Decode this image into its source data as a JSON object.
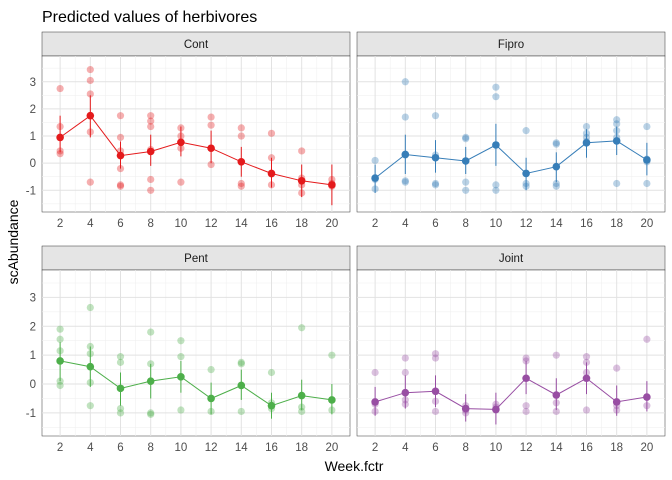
{
  "chart_data": {
    "type": "scatter",
    "title": "Predicted values of herbivores",
    "xlabel": "Week.fctr",
    "ylabel": "scAbundance",
    "categories": [
      "2",
      "4",
      "6",
      "8",
      "10",
      "12",
      "14",
      "16",
      "18",
      "20"
    ],
    "ylim": [
      -1.8,
      4.0
    ],
    "yticks": [
      -1,
      0,
      1,
      2,
      3
    ],
    "grid": true,
    "legend": "none",
    "series": [
      {
        "name": "Cont",
        "color": "#E41A1C",
        "predicted": [
          0.95,
          1.75,
          0.28,
          0.43,
          0.77,
          0.55,
          0.05,
          -0.38,
          -0.65,
          -0.8
        ],
        "ci_low": [
          0.4,
          0.95,
          -0.2,
          -0.1,
          0.25,
          0.0,
          -0.5,
          -0.9,
          -1.25,
          -1.55
        ],
        "ci_high": [
          1.75,
          2.5,
          0.8,
          1.05,
          1.35,
          1.2,
          0.6,
          0.2,
          -0.05,
          -0.05
        ],
        "raw_points": [
          [
            2,
            2.75
          ],
          [
            2,
            0.45
          ],
          [
            2,
            0.35
          ],
          [
            2,
            1.35
          ],
          [
            4,
            3.45
          ],
          [
            4,
            3.05
          ],
          [
            4,
            2.55
          ],
          [
            4,
            1.15
          ],
          [
            4,
            -0.7
          ],
          [
            6,
            1.75
          ],
          [
            6,
            0.95
          ],
          [
            6,
            0.45
          ],
          [
            6,
            -0.2
          ],
          [
            6,
            -0.8
          ],
          [
            6,
            -0.85
          ],
          [
            8,
            1.75
          ],
          [
            8,
            1.55
          ],
          [
            8,
            1.35
          ],
          [
            8,
            0.5
          ],
          [
            8,
            -0.6
          ],
          [
            8,
            -1.0
          ],
          [
            10,
            1.3
          ],
          [
            10,
            1.0
          ],
          [
            10,
            0.55
          ],
          [
            10,
            -0.7
          ],
          [
            12,
            1.7
          ],
          [
            12,
            1.4
          ],
          [
            12,
            0.55
          ],
          [
            12,
            -0.05
          ],
          [
            14,
            1.3
          ],
          [
            14,
            1.0
          ],
          [
            14,
            -0.75
          ],
          [
            14,
            -0.85
          ],
          [
            16,
            1.1
          ],
          [
            16,
            0.2
          ],
          [
            16,
            -0.4
          ],
          [
            16,
            -0.8
          ],
          [
            18,
            0.45
          ],
          [
            18,
            -0.55
          ],
          [
            18,
            -0.8
          ],
          [
            18,
            -1.1
          ],
          [
            20,
            -0.6
          ],
          [
            20,
            -0.75
          ],
          [
            20,
            -0.8
          ],
          [
            20,
            -0.85
          ]
        ]
      },
      {
        "name": "Fipro",
        "color": "#377EB8",
        "predicted": [
          -0.55,
          0.32,
          0.2,
          0.08,
          0.67,
          -0.38,
          -0.13,
          0.75,
          0.82,
          0.12
        ],
        "ci_low": [
          -1.1,
          -0.4,
          -0.35,
          -0.4,
          -0.1,
          -1.0,
          -0.7,
          0.2,
          0.3,
          -0.45
        ],
        "ci_high": [
          -0.05,
          1.05,
          0.85,
          0.6,
          1.45,
          0.2,
          0.4,
          1.25,
          1.35,
          0.75
        ],
        "raw_points": [
          [
            2,
            0.1
          ],
          [
            2,
            -0.6
          ],
          [
            2,
            -0.95
          ],
          [
            4,
            3.0
          ],
          [
            4,
            1.7
          ],
          [
            4,
            0.3
          ],
          [
            4,
            -0.65
          ],
          [
            4,
            -0.7
          ],
          [
            6,
            1.75
          ],
          [
            6,
            0.3
          ],
          [
            6,
            -0.75
          ],
          [
            6,
            -0.8
          ],
          [
            8,
            0.95
          ],
          [
            8,
            0.9
          ],
          [
            8,
            -0.7
          ],
          [
            8,
            -1.0
          ],
          [
            10,
            2.8
          ],
          [
            10,
            2.45
          ],
          [
            10,
            -0.8
          ],
          [
            10,
            -1.0
          ],
          [
            12,
            1.2
          ],
          [
            12,
            -0.75
          ],
          [
            12,
            -0.85
          ],
          [
            14,
            0.75
          ],
          [
            14,
            0.7
          ],
          [
            14,
            -0.75
          ],
          [
            14,
            -0.85
          ],
          [
            16,
            1.35
          ],
          [
            16,
            1.1
          ],
          [
            16,
            0.95
          ],
          [
            16,
            0.8
          ],
          [
            18,
            1.6
          ],
          [
            18,
            1.45
          ],
          [
            18,
            1.2
          ],
          [
            18,
            0.95
          ],
          [
            18,
            -0.75
          ],
          [
            20,
            1.35
          ],
          [
            20,
            0.15
          ],
          [
            20,
            0.05
          ],
          [
            20,
            -0.75
          ]
        ]
      },
      {
        "name": "Pent",
        "color": "#4DAF4A",
        "predicted": [
          0.8,
          0.6,
          -0.15,
          0.1,
          0.25,
          -0.5,
          -0.05,
          -0.75,
          -0.4,
          -0.55
        ],
        "ci_low": [
          0.1,
          -0.1,
          -0.75,
          -0.5,
          -0.3,
          -1.05,
          -0.55,
          -1.2,
          -0.9,
          -1.05
        ],
        "ci_high": [
          1.45,
          1.3,
          0.4,
          0.7,
          0.8,
          0.05,
          0.5,
          -0.3,
          0.15,
          0.0
        ],
        "raw_points": [
          [
            2,
            1.9
          ],
          [
            2,
            1.55
          ],
          [
            2,
            1.15
          ],
          [
            2,
            0.1
          ],
          [
            2,
            -0.05
          ],
          [
            4,
            2.65
          ],
          [
            4,
            1.3
          ],
          [
            4,
            1.05
          ],
          [
            4,
            0.05
          ],
          [
            4,
            -0.75
          ],
          [
            6,
            0.95
          ],
          [
            6,
            0.75
          ],
          [
            6,
            -0.85
          ],
          [
            6,
            -1.0
          ],
          [
            8,
            1.8
          ],
          [
            8,
            0.7
          ],
          [
            8,
            -1.0
          ],
          [
            8,
            -1.05
          ],
          [
            10,
            1.5
          ],
          [
            10,
            0.95
          ],
          [
            10,
            -0.9
          ],
          [
            12,
            0.5
          ],
          [
            12,
            -0.95
          ],
          [
            14,
            0.75
          ],
          [
            14,
            0.7
          ],
          [
            14,
            -0.95
          ],
          [
            16,
            0.4
          ],
          [
            16,
            -0.65
          ],
          [
            16,
            -0.85
          ],
          [
            18,
            1.95
          ],
          [
            18,
            -0.8
          ],
          [
            18,
            -0.95
          ],
          [
            20,
            1.0
          ],
          [
            20,
            -0.55
          ],
          [
            20,
            -0.9
          ]
        ]
      },
      {
        "name": "Joint",
        "color": "#984EA3",
        "predicted": [
          -0.62,
          -0.3,
          -0.25,
          -0.85,
          -0.88,
          0.2,
          -0.38,
          0.2,
          -0.62,
          -0.45
        ],
        "ci_low": [
          -1.1,
          -0.85,
          -0.8,
          -1.3,
          -1.4,
          -0.35,
          -0.9,
          -0.35,
          -1.1,
          -0.95
        ],
        "ci_high": [
          -0.1,
          0.3,
          0.3,
          -0.35,
          -0.3,
          0.8,
          0.2,
          0.75,
          -0.05,
          0.1
        ],
        "raw_points": [
          [
            2,
            0.4
          ],
          [
            2,
            -0.7
          ],
          [
            2,
            -0.95
          ],
          [
            4,
            0.9
          ],
          [
            4,
            0.4
          ],
          [
            4,
            -0.55
          ],
          [
            4,
            -0.7
          ],
          [
            6,
            1.05
          ],
          [
            6,
            0.9
          ],
          [
            6,
            -0.6
          ],
          [
            6,
            -0.95
          ],
          [
            8,
            -0.75
          ],
          [
            8,
            -0.9
          ],
          [
            8,
            -1.0
          ],
          [
            10,
            -0.7
          ],
          [
            10,
            -0.8
          ],
          [
            10,
            -0.9
          ],
          [
            12,
            0.9
          ],
          [
            12,
            0.8
          ],
          [
            12,
            -0.75
          ],
          [
            12,
            -0.95
          ],
          [
            14,
            1.0
          ],
          [
            14,
            -0.65
          ],
          [
            14,
            -0.95
          ],
          [
            16,
            0.95
          ],
          [
            16,
            0.75
          ],
          [
            16,
            0.4
          ],
          [
            16,
            -0.9
          ],
          [
            18,
            0.55
          ],
          [
            18,
            -0.75
          ],
          [
            18,
            -0.9
          ],
          [
            20,
            1.55
          ],
          [
            20,
            -0.45
          ],
          [
            20,
            -0.75
          ]
        ]
      }
    ]
  }
}
